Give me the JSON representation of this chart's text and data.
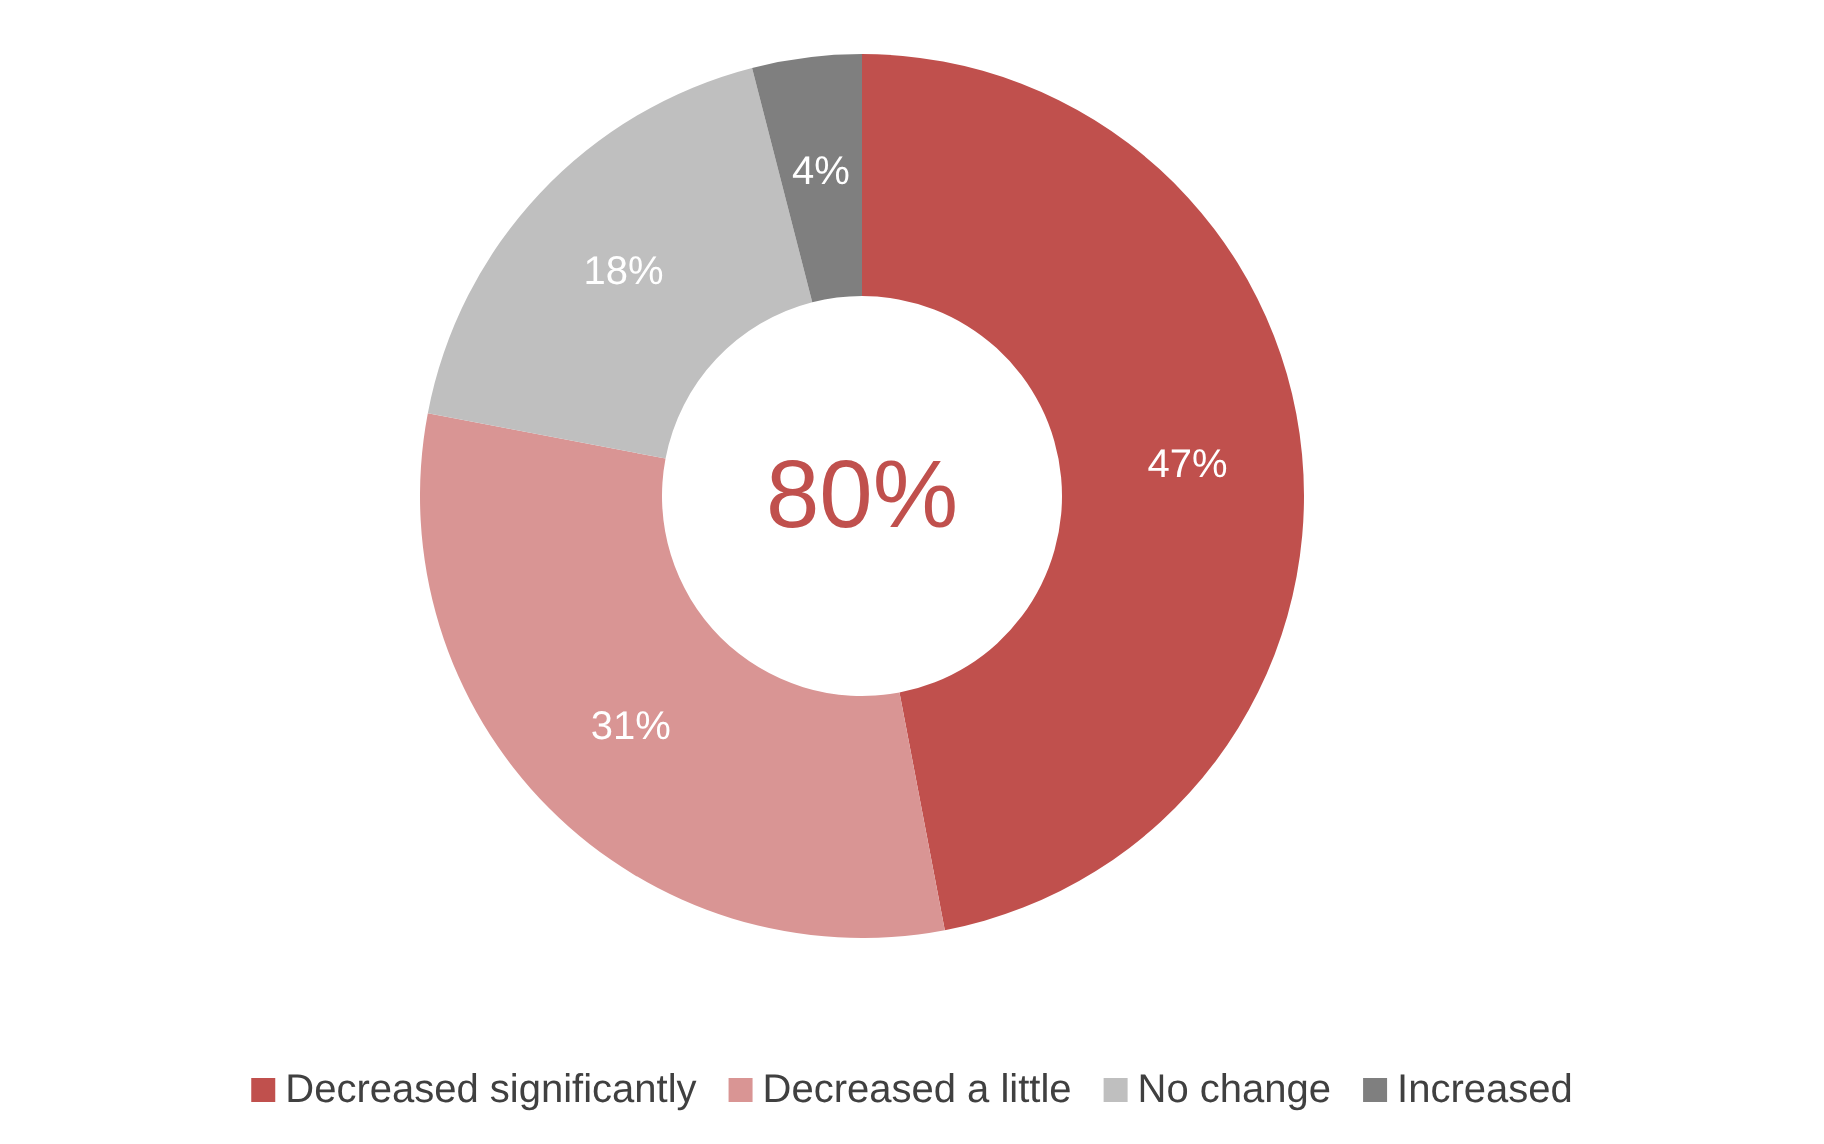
{
  "chart_data": {
    "type": "donut",
    "categories": [
      "Decreased significantly",
      "Decreased a little",
      "No change",
      "Increased"
    ],
    "values": [
      47,
      31,
      18,
      4
    ],
    "colors": [
      "#c0504d",
      "#d99594",
      "#bfbfbf",
      "#7f7f7f"
    ],
    "value_labels": [
      "47%",
      "31%",
      "18%",
      "4%"
    ],
    "annotations": [
      "80%"
    ],
    "legend": "bottom"
  }
}
